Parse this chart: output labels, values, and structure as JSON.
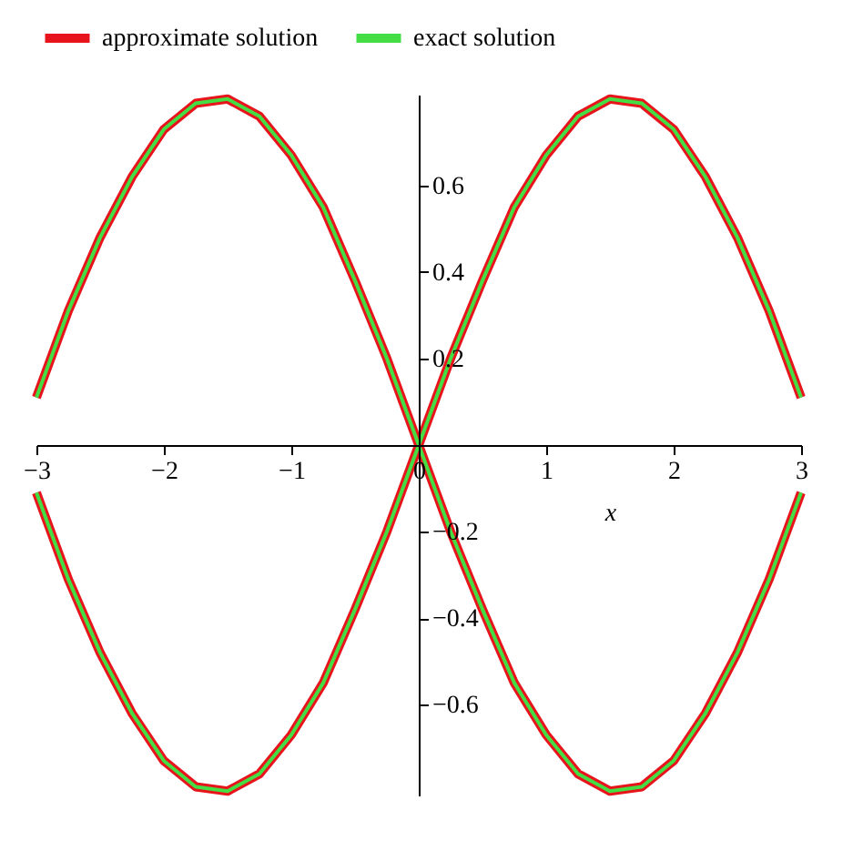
{
  "chart_data": {
    "type": "line",
    "xlabel": "x",
    "legend": "top",
    "xlim": [
      -3,
      3
    ],
    "ylim": [
      -0.81,
      0.81
    ],
    "xticks": [
      -3,
      -2,
      -1,
      0,
      1,
      2,
      3
    ],
    "yticks": [
      -0.6,
      -0.4,
      -0.2,
      0.2,
      0.4,
      0.6
    ],
    "series": [
      {
        "name": "approximate solution",
        "color": "#e8141c",
        "x": [
          -3,
          -2.75,
          -2.5,
          -2.25,
          -2,
          -1.75,
          -1.5,
          -1.25,
          -1,
          -0.75,
          -0.5,
          -0.25,
          0,
          0.25,
          0.5,
          0.75,
          1,
          1.25,
          1.5,
          1.75,
          2,
          2.25,
          2.5,
          2.75,
          3,
          null,
          -3,
          -2.75,
          -2.5,
          -2.25,
          -2,
          -1.75,
          -1.5,
          -1.25,
          -1,
          -0.75,
          -0.5,
          -0.25,
          0,
          0.25,
          0.5,
          0.75,
          1,
          1.25,
          1.5,
          1.75,
          2,
          2.25,
          2.5,
          2.75,
          3
        ],
        "values": [
          -0.11,
          -0.31,
          -0.48,
          -0.62,
          -0.73,
          -0.79,
          -0.8,
          -0.76,
          -0.67,
          -0.55,
          -0.38,
          -0.2,
          0,
          0.2,
          0.38,
          0.55,
          0.67,
          0.76,
          0.8,
          0.79,
          0.73,
          0.62,
          0.48,
          0.31,
          0.11,
          null,
          0.11,
          0.31,
          0.48,
          0.62,
          0.73,
          0.79,
          0.8,
          0.76,
          0.67,
          0.55,
          0.38,
          0.2,
          0,
          -0.2,
          -0.38,
          -0.55,
          -0.67,
          -0.76,
          -0.8,
          -0.79,
          -0.73,
          -0.62,
          -0.48,
          -0.31,
          -0.11
        ]
      },
      {
        "name": "exact solution",
        "color": "#44dd44",
        "x": [
          -3,
          -2.75,
          -2.5,
          -2.25,
          -2,
          -1.75,
          -1.5,
          -1.25,
          -1,
          -0.75,
          -0.5,
          -0.25,
          0,
          0.25,
          0.5,
          0.75,
          1,
          1.25,
          1.5,
          1.75,
          2,
          2.25,
          2.5,
          2.75,
          3,
          null,
          -3,
          -2.75,
          -2.5,
          -2.25,
          -2,
          -1.75,
          -1.5,
          -1.25,
          -1,
          -0.75,
          -0.5,
          -0.25,
          0,
          0.25,
          0.5,
          0.75,
          1,
          1.25,
          1.5,
          1.75,
          2,
          2.25,
          2.5,
          2.75,
          3
        ],
        "values": [
          -0.11,
          -0.31,
          -0.48,
          -0.62,
          -0.73,
          -0.79,
          -0.8,
          -0.76,
          -0.67,
          -0.55,
          -0.38,
          -0.2,
          0,
          0.2,
          0.38,
          0.55,
          0.67,
          0.76,
          0.8,
          0.79,
          0.73,
          0.62,
          0.48,
          0.31,
          0.11,
          null,
          0.11,
          0.31,
          0.48,
          0.62,
          0.73,
          0.79,
          0.8,
          0.76,
          0.67,
          0.55,
          0.38,
          0.2,
          0,
          -0.2,
          -0.38,
          -0.55,
          -0.67,
          -0.76,
          -0.8,
          -0.79,
          -0.73,
          -0.62,
          -0.48,
          -0.31,
          -0.11
        ]
      }
    ]
  }
}
